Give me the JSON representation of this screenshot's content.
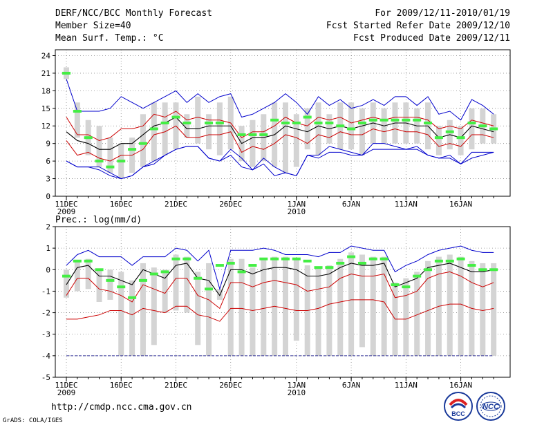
{
  "header": {
    "title": "DERF/NCC/BCC Monthly Forecast",
    "member_size": "Member Size=40",
    "variable1": "Mean Surf. Temp.: °C",
    "period": "For 2009/12/11-2010/01/19",
    "fcst_started": "Fcst Started Refer Date 2009/12/10",
    "fcst_produced": "Fcst Produced Date 2009/12/11"
  },
  "footer": {
    "url": "http://cmdp.ncc.cma.gov.cn",
    "credit": "GrADS: COLA/IGES",
    "logo1_text": "BCC",
    "logo2_text": "NCC"
  },
  "colors": {
    "max": "#0000cc",
    "pct": "#cc0000",
    "mean": "#000000",
    "obs": "#44ee44",
    "box": "#d4d4d4",
    "axis": "#000000",
    "grid": "#888888"
  },
  "chart_data": [
    {
      "type": "box",
      "title": "Mean Surf. Temp.: °C",
      "ylim": [
        0,
        25
      ],
      "yticks": [
        "0",
        "3",
        "6",
        "9",
        "12",
        "15",
        "18",
        "21",
        "24"
      ],
      "ytick_values": [
        0,
        3,
        6,
        9,
        12,
        15,
        18,
        21,
        24
      ],
      "xlabels": [
        {
          "day": 0,
          "text": "11DEC",
          "sub": "2009"
        },
        {
          "day": 5,
          "text": "16DEC",
          "sub": ""
        },
        {
          "day": 10,
          "text": "21DEC",
          "sub": ""
        },
        {
          "day": 15,
          "text": "26DEC",
          "sub": ""
        },
        {
          "day": 21,
          "text": "1JAN",
          "sub": "2010"
        },
        {
          "day": 26,
          "text": "6JAN",
          "sub": ""
        },
        {
          "day": 31,
          "text": "11JAN",
          "sub": ""
        },
        {
          "day": 36,
          "text": "16JAN",
          "sub": ""
        }
      ],
      "max": [
        6,
        5,
        5,
        5,
        4,
        3,
        3.5,
        5,
        5.5,
        7,
        8,
        8.5,
        8.5,
        6.5,
        6,
        8,
        6.5,
        4.5,
        6.5,
        5,
        4,
        3.5,
        7,
        7,
        8.5,
        8,
        7.5,
        7,
        9,
        9,
        8.5,
        8,
        8.5,
        7,
        6.5,
        7,
        5.5,
        7.5,
        7.5,
        7.5
      ],
      "p90": [
        20,
        14.5,
        14.5,
        14.5,
        15,
        17,
        16,
        15,
        16,
        17,
        18,
        16,
        17.5,
        16,
        17,
        17.5,
        13.5,
        14,
        15,
        16,
        17.5,
        16,
        14,
        17,
        15.5,
        16.5,
        15,
        15.5,
        16.5,
        15.5,
        17,
        17,
        15.5,
        17,
        14,
        14.5,
        13,
        16.5,
        15.5,
        14
      ],
      "upper": [
        13.5,
        10.5,
        10.5,
        9.5,
        10,
        11.5,
        11.5,
        12,
        14,
        13.5,
        14.5,
        13,
        13.5,
        13,
        13,
        12.5,
        10,
        11,
        11,
        12,
        13.5,
        12.5,
        12,
        13.5,
        13,
        13.5,
        12.5,
        13,
        13.5,
        13,
        13.5,
        13.5,
        13.5,
        13,
        11.5,
        12,
        11.5,
        13,
        12.5,
        12
      ],
      "mean": [
        11,
        9.5,
        9,
        8,
        8,
        9,
        9,
        10.5,
        12,
        12.5,
        13.5,
        11.5,
        11.5,
        12,
        12,
        12,
        9,
        10,
        10,
        10.5,
        12,
        11.5,
        11,
        12,
        11.5,
        12,
        11.5,
        12,
        12.5,
        12,
        12.5,
        12.5,
        12,
        12,
        10,
        10.5,
        10,
        12,
        11.5,
        11
      ],
      "lower": [
        9.5,
        7,
        7.5,
        6.5,
        6,
        7,
        7,
        8,
        10.5,
        11,
        12,
        10,
        10,
        10.5,
        10.5,
        11,
        7.5,
        8.5,
        8,
        9,
        10.5,
        10,
        9,
        10.5,
        10,
        11,
        10.5,
        10.5,
        11.5,
        11,
        11.5,
        11,
        11,
        10.5,
        8.5,
        9,
        8.5,
        10.5,
        10.5,
        10
      ],
      "pmin": [
        6,
        5,
        5,
        4.5,
        3.5,
        3,
        3.5,
        5,
        6,
        7,
        8,
        8.5,
        8.5,
        6.5,
        6,
        7,
        5,
        4.5,
        5.5,
        3.5,
        4,
        3.5,
        7,
        6.5,
        7.5,
        7.5,
        7,
        7,
        8,
        8,
        8,
        8,
        8,
        7,
        6.5,
        6.5,
        5.5,
        6.5,
        7,
        7.5
      ],
      "box_hi": [
        22,
        16,
        13,
        12,
        10,
        9,
        10,
        14,
        16,
        16,
        16,
        14,
        17,
        14,
        16,
        17,
        12,
        13,
        14,
        16,
        16,
        14,
        15,
        16,
        14,
        16,
        16,
        15,
        16,
        15,
        16,
        16,
        15,
        16,
        12,
        13,
        12,
        15,
        15,
        14
      ],
      "box_lo": [
        20,
        10,
        7,
        5,
        4,
        3,
        4,
        5,
        6,
        7,
        8,
        10,
        9,
        8,
        7,
        8,
        6,
        5,
        6,
        5,
        4,
        5,
        8,
        7,
        9,
        8,
        8,
        7,
        9,
        9,
        9,
        9,
        9,
        8,
        7,
        8,
        7,
        8,
        9,
        9
      ],
      "obs": [
        21,
        14.5,
        10,
        6,
        5,
        6,
        8,
        9,
        11.5,
        12.5,
        13.5,
        12.5,
        null,
        12.5,
        12.5,
        null,
        10.5,
        10.5,
        10.5,
        13,
        12.5,
        12.5,
        13.5,
        12.5,
        12.5,
        12,
        11.5,
        12.5,
        13,
        13,
        13,
        13,
        13,
        12.5,
        10,
        11,
        10,
        12.5,
        12,
        11.5
      ]
    },
    {
      "type": "box",
      "title": "Prec.: log(mm/d)",
      "ylim": [
        -5,
        2
      ],
      "yticks": [
        "-5",
        "-4",
        "-3",
        "-2",
        "-1",
        "0",
        "1",
        "2"
      ],
      "ytick_values": [
        -5,
        -4,
        -3,
        -2,
        -1,
        0,
        1,
        2
      ],
      "xlabels": [
        {
          "day": 0,
          "text": "11DEC",
          "sub": "2009"
        },
        {
          "day": 5,
          "text": "16DEC",
          "sub": ""
        },
        {
          "day": 10,
          "text": "21DEC",
          "sub": ""
        },
        {
          "day": 15,
          "text": "26DEC",
          "sub": ""
        },
        {
          "day": 21,
          "text": "1JAN",
          "sub": "2010"
        },
        {
          "day": 26,
          "text": "6JAN",
          "sub": ""
        },
        {
          "day": 31,
          "text": "11JAN",
          "sub": ""
        },
        {
          "day": 36,
          "text": "16JAN",
          "sub": ""
        }
      ],
      "floor_line": -4,
      "p90": [
        0.2,
        0.7,
        0.9,
        0.6,
        0.6,
        0.6,
        0.2,
        0.6,
        0.6,
        0.6,
        1,
        0.9,
        0.4,
        0.9,
        -0.9,
        0.9,
        0.9,
        0.9,
        1,
        0.9,
        0.7,
        0.7,
        0.7,
        0.6,
        0.8,
        0.8,
        1.1,
        1,
        0.9,
        0.9,
        -0.1,
        0.2,
        0.4,
        0.7,
        0.9,
        1,
        1.1,
        0.9,
        0.8,
        0.8
      ],
      "mean": [
        -0.7,
        0.1,
        0.2,
        -0.3,
        -0.3,
        -0.5,
        -0.7,
        0,
        -0.2,
        -0.4,
        0.2,
        0.3,
        -0.4,
        -0.5,
        -1.2,
        0,
        0,
        -0.2,
        0,
        0.1,
        0.1,
        0,
        -0.3,
        -0.3,
        -0.2,
        0.1,
        0.3,
        0.2,
        0.2,
        0.3,
        -0.8,
        -0.6,
        -0.4,
        0.1,
        0.2,
        0.3,
        0.1,
        -0.1,
        -0.1,
        0
      ],
      "upper": [
        -1.2,
        -0.4,
        -0.4,
        -0.9,
        -1,
        -1.2,
        -1.5,
        -0.7,
        -0.9,
        -1.1,
        -0.4,
        -0.4,
        -1.2,
        -1.4,
        -1.8,
        -0.6,
        -0.6,
        -0.8,
        -0.6,
        -0.5,
        -0.6,
        -0.7,
        -1,
        -0.9,
        -0.8,
        -0.4,
        -0.2,
        -0.3,
        -0.3,
        -0.2,
        -1.3,
        -1.2,
        -1,
        -0.4,
        -0.2,
        -0.1,
        -0.3,
        -0.6,
        -0.8,
        -0.6
      ],
      "lower": [
        -2.3,
        -2.3,
        -2.2,
        -2.1,
        -1.9,
        -1.9,
        -2.1,
        -1.8,
        -1.9,
        -2,
        -1.7,
        -1.7,
        -2.1,
        -2.2,
        -2.4,
        -1.8,
        -1.8,
        -1.9,
        -1.8,
        -1.7,
        -1.8,
        -1.9,
        -1.9,
        -1.8,
        -1.6,
        -1.5,
        -1.4,
        -1.4,
        -1.4,
        -1.5,
        -2.3,
        -2.3,
        -2.1,
        -1.9,
        -1.7,
        -1.6,
        -1.6,
        -1.8,
        -1.9,
        -1.8
      ],
      "box_hi": [
        0,
        0.4,
        0.5,
        0,
        0,
        -0.1,
        -0.5,
        0.3,
        0.1,
        0,
        0.7,
        0.6,
        -0.1,
        0.3,
        -0.9,
        0.5,
        0.5,
        0.1,
        0.5,
        0.6,
        0.6,
        0.5,
        0.2,
        0.1,
        0.2,
        0.5,
        0.8,
        0.7,
        0.6,
        0.6,
        -0.6,
        -0.4,
        -0.1,
        0.4,
        0.6,
        0.7,
        0.6,
        0.4,
        0.3,
        0.3
      ],
      "box_lo": [
        -1.3,
        -1,
        -0.9,
        -1.5,
        -1.4,
        -4,
        -4,
        -4,
        -3.5,
        -2,
        -1.9,
        -2,
        -3.5,
        -4,
        -1.4,
        -4,
        -4,
        -4,
        -4,
        -4,
        -4,
        -3.3,
        -4,
        -4,
        -4,
        -4,
        -4,
        -3.6,
        -4,
        -4,
        -4,
        -4,
        -4,
        -4,
        -4,
        -4,
        -4,
        -4,
        -4,
        -4
      ],
      "obs": [
        -0.3,
        0.4,
        0.4,
        0,
        -0.5,
        -0.8,
        -1.3,
        -0.5,
        -0.2,
        -0.1,
        0.5,
        0.5,
        -0.4,
        -0.9,
        0.2,
        0.3,
        -0.1,
        0.2,
        0.5,
        0.5,
        0.5,
        0.5,
        0.4,
        0.1,
        0.1,
        0.3,
        0.6,
        0.3,
        0.5,
        0.5,
        -0.7,
        -0.8,
        -0.3,
        0,
        0.4,
        0.4,
        0.5,
        0.2,
        0,
        0
      ]
    }
  ]
}
